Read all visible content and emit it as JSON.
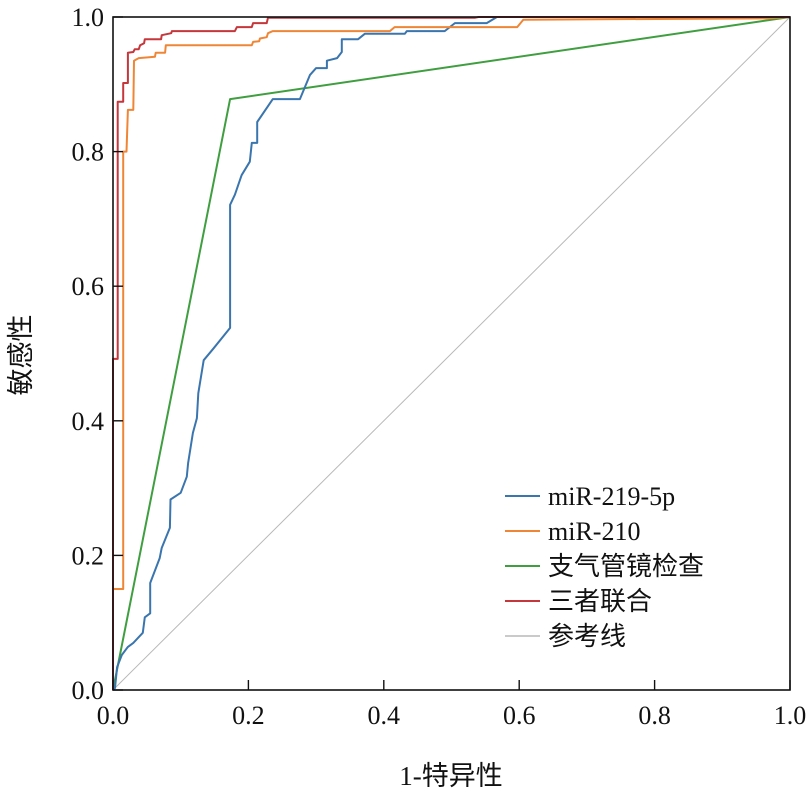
{
  "chart_data": {
    "type": "line",
    "title": "",
    "xlabel": "1-特异性",
    "ylabel": "敏感性",
    "xlim": [
      0,
      1
    ],
    "ylim": [
      0,
      1
    ],
    "xticks": [
      "0.0",
      "0.2",
      "0.4",
      "0.6",
      "0.8",
      "1.0"
    ],
    "yticks": [
      "0.0",
      "0.2",
      "0.4",
      "0.6",
      "0.8",
      "1.0"
    ],
    "xtick_values": [
      0,
      0.2,
      0.4,
      0.6,
      0.8,
      1.0
    ],
    "ytick_values": [
      0,
      0.2,
      0.4,
      0.6,
      0.8,
      1.0
    ],
    "grid": false,
    "legend_position": "bottom-right",
    "series": [
      {
        "name": "miR-219-5p",
        "color": "#3a75ae",
        "width": 2,
        "points": [
          [
            0,
            0
          ],
          [
            0.003,
            0.003
          ],
          [
            0.006,
            0.034
          ],
          [
            0.013,
            0.052
          ],
          [
            0.022,
            0.064
          ],
          [
            0.03,
            0.07
          ],
          [
            0.044,
            0.085
          ],
          [
            0.047,
            0.108
          ],
          [
            0.055,
            0.114
          ],
          [
            0.055,
            0.159
          ],
          [
            0.069,
            0.196
          ],
          [
            0.072,
            0.211
          ],
          [
            0.084,
            0.241
          ],
          [
            0.085,
            0.283
          ],
          [
            0.1,
            0.293
          ],
          [
            0.109,
            0.317
          ],
          [
            0.111,
            0.337
          ],
          [
            0.118,
            0.382
          ],
          [
            0.124,
            0.404
          ],
          [
            0.126,
            0.441
          ],
          [
            0.134,
            0.49
          ],
          [
            0.148,
            0.507
          ],
          [
            0.173,
            0.538
          ],
          [
            0.173,
            0.721
          ],
          [
            0.18,
            0.736
          ],
          [
            0.19,
            0.765
          ],
          [
            0.202,
            0.785
          ],
          [
            0.205,
            0.813
          ],
          [
            0.213,
            0.813
          ],
          [
            0.213,
            0.844
          ],
          [
            0.236,
            0.878
          ],
          [
            0.276,
            0.878
          ],
          [
            0.291,
            0.914
          ],
          [
            0.3,
            0.924
          ],
          [
            0.316,
            0.924
          ],
          [
            0.316,
            0.935
          ],
          [
            0.331,
            0.939
          ],
          [
            0.338,
            0.948
          ],
          [
            0.338,
            0.967
          ],
          [
            0.362,
            0.967
          ],
          [
            0.372,
            0.975
          ],
          [
            0.431,
            0.975
          ],
          [
            0.434,
            0.979
          ],
          [
            0.49,
            0.979
          ],
          [
            0.505,
            0.991
          ],
          [
            0.552,
            0.991
          ],
          [
            0.567,
            1.0
          ],
          [
            1,
            1
          ]
        ]
      },
      {
        "name": "miR-210",
        "color": "#ef8636",
        "width": 2,
        "points": [
          [
            0,
            0
          ],
          [
            0,
            0.15
          ],
          [
            0.015,
            0.15
          ],
          [
            0.015,
            0.8
          ],
          [
            0.02,
            0.8
          ],
          [
            0.022,
            0.862
          ],
          [
            0.03,
            0.862
          ],
          [
            0.031,
            0.935
          ],
          [
            0.038,
            0.939
          ],
          [
            0.062,
            0.941
          ],
          [
            0.063,
            0.947
          ],
          [
            0.077,
            0.947
          ],
          [
            0.078,
            0.958
          ],
          [
            0.205,
            0.958
          ],
          [
            0.207,
            0.963
          ],
          [
            0.216,
            0.964
          ],
          [
            0.217,
            0.968
          ],
          [
            0.227,
            0.97
          ],
          [
            0.229,
            0.976
          ],
          [
            0.236,
            0.979
          ],
          [
            0.409,
            0.979
          ],
          [
            0.416,
            0.985
          ],
          [
            0.597,
            0.985
          ],
          [
            0.606,
            0.996
          ],
          [
            0.97,
            0.998
          ],
          [
            1,
            1
          ]
        ]
      },
      {
        "name": "支气管镜检查",
        "color": "#3f9e3f",
        "width": 2,
        "points": [
          [
            0,
            0
          ],
          [
            0.173,
            0.878
          ],
          [
            1,
            1
          ]
        ]
      },
      {
        "name": "三者联合",
        "color": "#c5373b",
        "width": 2,
        "points": [
          [
            0,
            0
          ],
          [
            0,
            0.492
          ],
          [
            0.007,
            0.492
          ],
          [
            0.007,
            0.874
          ],
          [
            0.015,
            0.874
          ],
          [
            0.015,
            0.902
          ],
          [
            0.022,
            0.902
          ],
          [
            0.022,
            0.947
          ],
          [
            0.03,
            0.948
          ],
          [
            0.032,
            0.952
          ],
          [
            0.038,
            0.952
          ],
          [
            0.04,
            0.958
          ],
          [
            0.046,
            0.961
          ],
          [
            0.047,
            0.967
          ],
          [
            0.071,
            0.967
          ],
          [
            0.072,
            0.973
          ],
          [
            0.086,
            0.976
          ],
          [
            0.087,
            0.979
          ],
          [
            0.18,
            0.979
          ],
          [
            0.183,
            0.985
          ],
          [
            0.205,
            0.985
          ],
          [
            0.207,
            0.991
          ],
          [
            0.227,
            0.991
          ],
          [
            0.229,
            0.999
          ],
          [
            0.535,
            0.999
          ],
          [
            0.54,
            1.0
          ],
          [
            1,
            1
          ]
        ]
      },
      {
        "name": "参考线",
        "color": "#b8b8b8",
        "width": 1,
        "points": [
          [
            0,
            0
          ],
          [
            1,
            1
          ]
        ]
      }
    ]
  }
}
